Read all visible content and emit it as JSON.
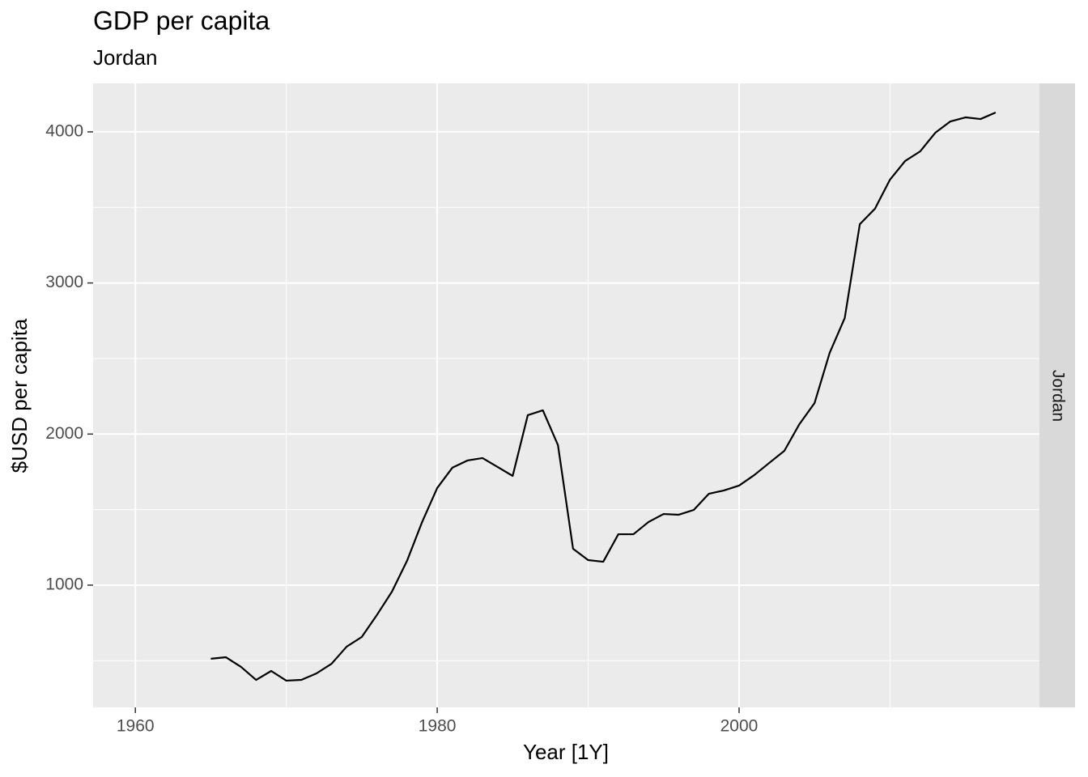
{
  "chart_data": {
    "type": "line",
    "title": "GDP per capita",
    "subtitle": "Jordan",
    "facet": "Jordan",
    "x_label": "Year [1Y]",
    "y_label": "$USD per capita",
    "x": [
      1965,
      1966,
      1967,
      1968,
      1969,
      1970,
      1971,
      1972,
      1973,
      1974,
      1975,
      1976,
      1977,
      1978,
      1979,
      1980,
      1981,
      1982,
      1983,
      1984,
      1985,
      1986,
      1987,
      1988,
      1989,
      1990,
      1991,
      1992,
      1993,
      1994,
      1995,
      1996,
      1997,
      1998,
      1999,
      2000,
      2001,
      2002,
      2003,
      2004,
      2005,
      2006,
      2007,
      2008,
      2009,
      2010,
      2011,
      2012,
      2013,
      2014,
      2015,
      2016,
      2017
    ],
    "series": [
      {
        "name": "Jordan",
        "color": "#000000",
        "values": [
          513,
          523,
          459,
          373,
          432,
          368,
          373,
          416,
          480,
          593,
          657,
          802,
          957,
          1161,
          1418,
          1643,
          1777,
          1825,
          1841,
          1782,
          1723,
          2125,
          2157,
          1927,
          1241,
          1166,
          1155,
          1337,
          1337,
          1418,
          1471,
          1466,
          1498,
          1605,
          1627,
          1659,
          1728,
          1809,
          1889,
          2066,
          2205,
          2537,
          2768,
          3389,
          3491,
          3684,
          3807,
          3871,
          3994,
          4069,
          4096,
          4085,
          4128
        ]
      }
    ],
    "xlim": [
      1957.2,
      2019.9
    ],
    "xticks": [
      1960,
      1980,
      2000
    ],
    "ylim": [
      191,
      4321
    ],
    "yticks": [
      1000,
      2000,
      3000,
      4000
    ],
    "grid": true
  }
}
